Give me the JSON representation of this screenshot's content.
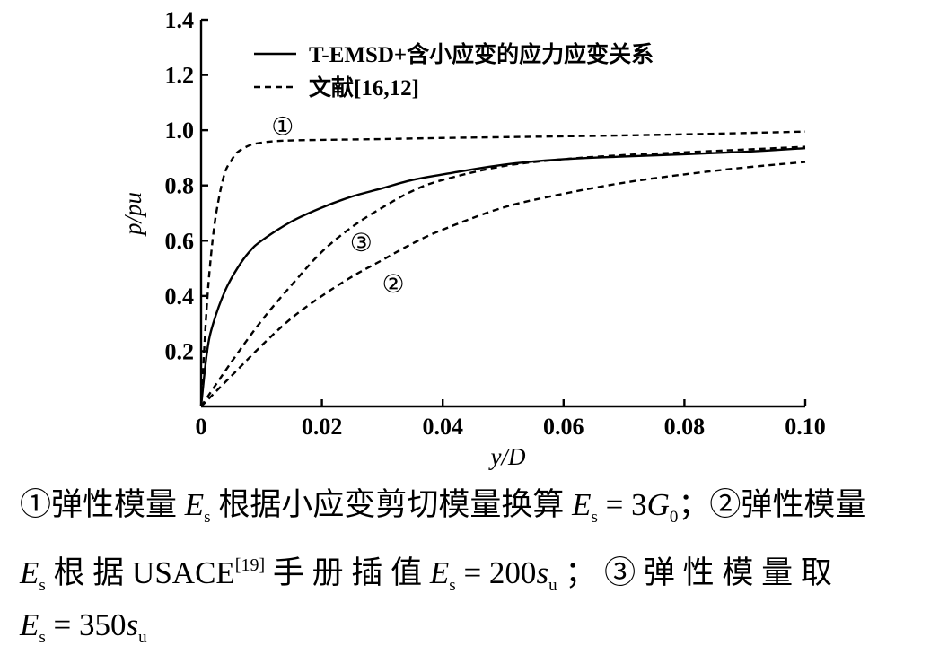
{
  "chart_data": {
    "type": "line",
    "title": "",
    "xlabel": "y/D",
    "ylabel": "p/pu",
    "xlim": [
      0,
      0.1
    ],
    "ylim": [
      0,
      1.4
    ],
    "x_ticks": [
      0,
      0.02,
      0.04,
      0.06,
      0.08,
      0.1
    ],
    "x_tick_labels": [
      "0",
      "0.02",
      "0.04",
      "0.06",
      "0.08",
      "0.10"
    ],
    "y_ticks": [
      0.2,
      0.4,
      0.6,
      0.8,
      1.0,
      1.2,
      1.4
    ],
    "y_tick_labels": [
      "0.2",
      "0.4",
      "0.6",
      "0.8",
      "1.0",
      "1.2",
      "1.4"
    ],
    "grid": false,
    "legend_position": "top",
    "legend": [
      {
        "label": "T-EMSD+含小应变的应力应变关系",
        "style": "solid"
      },
      {
        "label": "文献[16,12]",
        "style": "dashed"
      }
    ],
    "series": [
      {
        "name": "T-EMSD+含小应变的应力应变关系",
        "style": "solid",
        "x": [
          0,
          0.001,
          0.002,
          0.004,
          0.006,
          0.008,
          0.01,
          0.015,
          0.02,
          0.025,
          0.03,
          0.035,
          0.04,
          0.05,
          0.06,
          0.07,
          0.08,
          0.09,
          0.1
        ],
        "y": [
          0,
          0.2,
          0.3,
          0.42,
          0.5,
          0.56,
          0.6,
          0.67,
          0.72,
          0.76,
          0.79,
          0.82,
          0.84,
          0.875,
          0.895,
          0.905,
          0.913,
          0.922,
          0.935
        ]
      },
      {
        "name": "①",
        "style": "dashed",
        "x": [
          0,
          0.001,
          0.002,
          0.003,
          0.004,
          0.005,
          0.006,
          0.008,
          0.01,
          0.012,
          0.015,
          0.02,
          0.03,
          0.04,
          0.06,
          0.08,
          0.1
        ],
        "y": [
          0,
          0.38,
          0.62,
          0.76,
          0.85,
          0.89,
          0.92,
          0.945,
          0.955,
          0.96,
          0.963,
          0.965,
          0.968,
          0.972,
          0.978,
          0.985,
          0.995
        ]
      },
      {
        "name": "②",
        "style": "dashed",
        "x": [
          0,
          0.005,
          0.01,
          0.015,
          0.02,
          0.025,
          0.03,
          0.035,
          0.04,
          0.05,
          0.06,
          0.07,
          0.08,
          0.09,
          0.1
        ],
        "y": [
          0,
          0.11,
          0.22,
          0.32,
          0.4,
          0.47,
          0.53,
          0.59,
          0.64,
          0.72,
          0.77,
          0.81,
          0.84,
          0.865,
          0.885
        ]
      },
      {
        "name": "③",
        "style": "dashed",
        "x": [
          0,
          0.005,
          0.01,
          0.015,
          0.02,
          0.025,
          0.03,
          0.035,
          0.04,
          0.05,
          0.06,
          0.07,
          0.08,
          0.09,
          0.1
        ],
        "y": [
          0,
          0.16,
          0.31,
          0.44,
          0.56,
          0.65,
          0.72,
          0.78,
          0.82,
          0.87,
          0.895,
          0.91,
          0.92,
          0.93,
          0.94
        ]
      }
    ],
    "annotations": [
      {
        "text": "①",
        "x": 0.0135,
        "y": 1.015
      },
      {
        "text": "②",
        "x": 0.0318,
        "y": 0.445
      },
      {
        "text": "③",
        "x": 0.0265,
        "y": 0.595
      }
    ]
  },
  "caption": {
    "line1_part1": "①弹性模量 ",
    "line1_part2": " 根据小应变剪切模量换算 ",
    "line1_part3": "；②弹性模量",
    "line2_part1": " 根 据 USACE",
    "line2_sup": "[19]",
    "line2_part2": " 手 册 插 值 ",
    "line2_part3": " ； ③ 弹 性 模 量 取",
    "E": "E",
    "s": "s",
    "u": "u",
    "eq1_rhs": " = 3",
    "G": "G",
    "zero": "0",
    "eq2_rhs": " = 200",
    "eq3_rhs": " = 350",
    "s_italic": "s"
  }
}
